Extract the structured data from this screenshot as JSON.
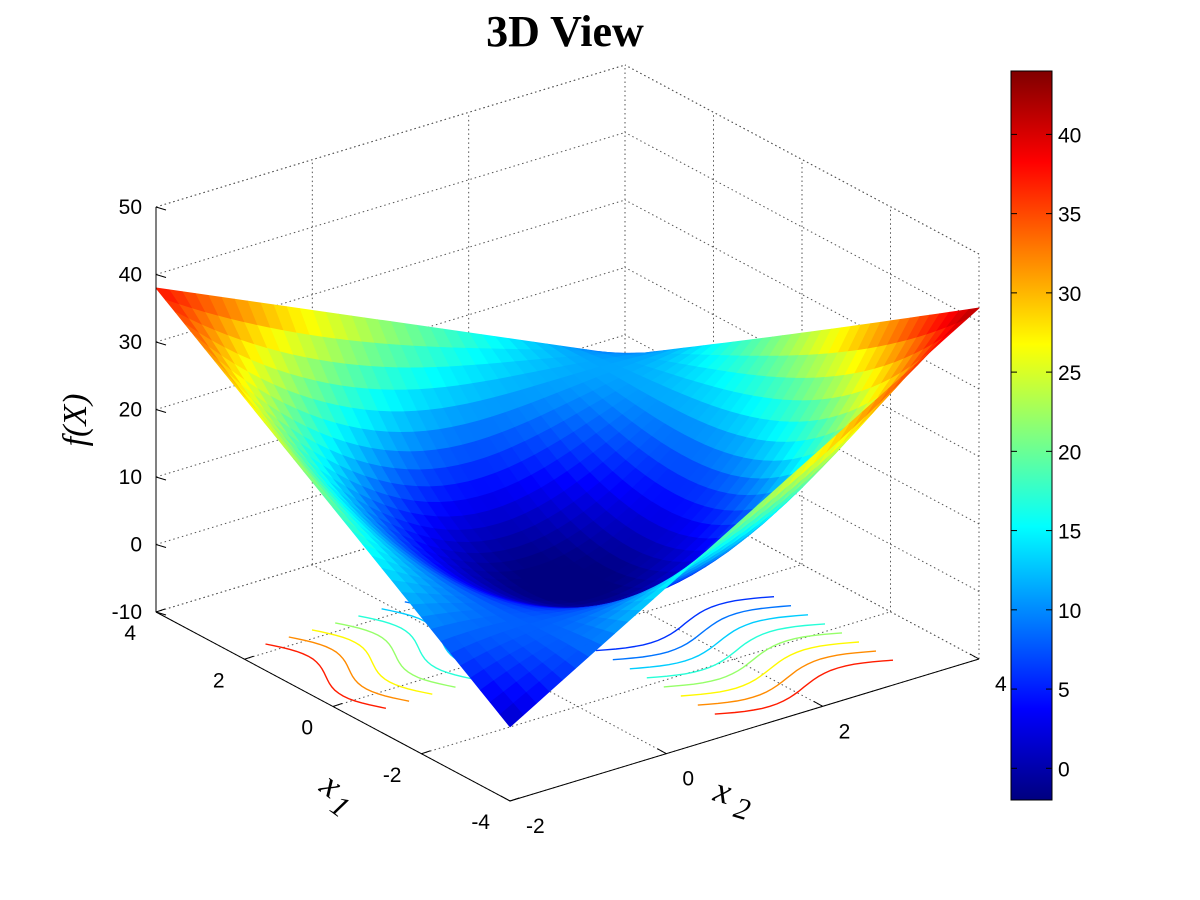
{
  "chart_data": {
    "type": "surface",
    "title": "3D View",
    "xlabel": "x",
    "xlabel_sub": "2",
    "ylabel": "x",
    "ylabel_sub": "1",
    "zlabel": "f(X)",
    "xlim": [
      -2,
      4
    ],
    "ylim": [
      -4,
      4
    ],
    "zlim": [
      -10,
      50
    ],
    "x_ticks": [
      "-2",
      "0",
      "2",
      "4"
    ],
    "y_ticks": [
      "-4",
      "-2",
      "0",
      "2",
      "4"
    ],
    "z_ticks": [
      "-10",
      "0",
      "10",
      "20",
      "30",
      "40",
      "50"
    ],
    "colorbar": {
      "range": [
        -2,
        44
      ],
      "ticks": [
        "0",
        "5",
        "10",
        "15",
        "20",
        "25",
        "30",
        "35",
        "40"
      ],
      "colormap": "jet"
    },
    "grid": true,
    "corner_values": [
      {
        "x2": -2,
        "x1": -4,
        "f": 1
      },
      {
        "x2": -2,
        "x1": 4,
        "f": 38
      },
      {
        "x2": 4,
        "x1": -4,
        "f": 42
      },
      {
        "x2": 4,
        "x1": 4,
        "f": 7
      }
    ],
    "minimum_value": -2,
    "contours_on_floor": true
  }
}
